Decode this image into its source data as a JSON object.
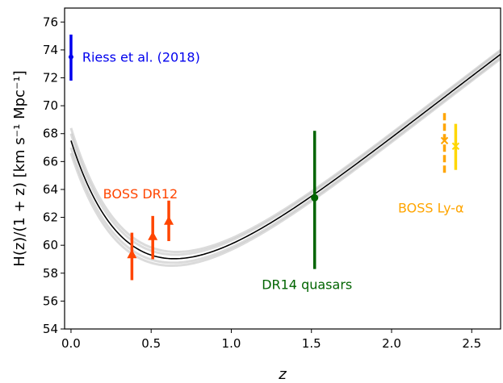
{
  "chart_data": {
    "type": "scatter",
    "title": "",
    "xlabel": "z",
    "ylabel": "H(z)/(1 + z) [km s⁻¹ Mpc⁻¹]",
    "xlim": [
      -0.04,
      2.68
    ],
    "ylim": [
      54,
      77
    ],
    "x_ticks": [
      {
        "value": 0.0,
        "label": "0.0"
      },
      {
        "value": 0.5,
        "label": "0.5"
      },
      {
        "value": 1.0,
        "label": "1.0"
      },
      {
        "value": 1.5,
        "label": "1.5"
      },
      {
        "value": 2.0,
        "label": "2.0"
      },
      {
        "value": 2.5,
        "label": "2.5"
      }
    ],
    "y_ticks": [
      {
        "value": 54,
        "label": "54"
      },
      {
        "value": 56,
        "label": "56"
      },
      {
        "value": 58,
        "label": "58"
      },
      {
        "value": 60,
        "label": "60"
      },
      {
        "value": 62,
        "label": "62"
      },
      {
        "value": 64,
        "label": "64"
      },
      {
        "value": 66,
        "label": "66"
      },
      {
        "value": 68,
        "label": "68"
      },
      {
        "value": 70,
        "label": "70"
      },
      {
        "value": 72,
        "label": "72"
      },
      {
        "value": 74,
        "label": "74"
      },
      {
        "value": 76,
        "label": "76"
      }
    ],
    "grid": false,
    "model_curve": {
      "H0": 67.5,
      "Om": 0.31,
      "z_range": [
        0,
        2.68
      ],
      "color": "#000000",
      "band_color": "#bdbdbd"
    },
    "series": [
      {
        "color": "#0000ee",
        "marker": "dot",
        "points": [
          {
            "x": 0.0,
            "y": 73.5,
            "ylow": 71.8,
            "yhigh": 75.1
          }
        ]
      },
      {
        "color": "#ff4500",
        "marker": "triangle-up",
        "points": [
          {
            "x": 0.38,
            "y": 59.3,
            "ylow": 57.5,
            "yhigh": 60.9
          },
          {
            "x": 0.51,
            "y": 60.6,
            "ylow": 59.0,
            "yhigh": 62.1
          },
          {
            "x": 0.61,
            "y": 61.7,
            "ylow": 60.3,
            "yhigh": 63.2
          }
        ]
      },
      {
        "color": "#006400",
        "marker": "dot",
        "points": [
          {
            "x": 1.52,
            "y": 63.4,
            "ylow": 58.3,
            "yhigh": 68.2
          }
        ]
      },
      {
        "color": "#ffa500",
        "marker": "x",
        "dashed": true,
        "points": [
          {
            "x": 2.33,
            "y": 67.5,
            "ylow": 65.2,
            "yhigh": 69.7
          }
        ]
      },
      {
        "color": "#ffd700",
        "marker": "x",
        "dashed": false,
        "points": [
          {
            "x": 2.4,
            "y": 67.1,
            "ylow": 65.4,
            "yhigh": 68.7
          }
        ]
      }
    ],
    "annotations": [
      {
        "text": "Riess et al. (2018)",
        "x": 0.07,
        "y": 73.5,
        "color": "#0000ee"
      },
      {
        "text": "BOSS DR12",
        "x": 0.2,
        "y": 63.7,
        "color": "#ff4500"
      },
      {
        "text": "DR14 quasars",
        "x": 1.19,
        "y": 57.2,
        "color": "#006400"
      },
      {
        "text": "BOSS Ly-α",
        "x": 2.04,
        "y": 62.7,
        "color": "#ffa500"
      }
    ]
  }
}
